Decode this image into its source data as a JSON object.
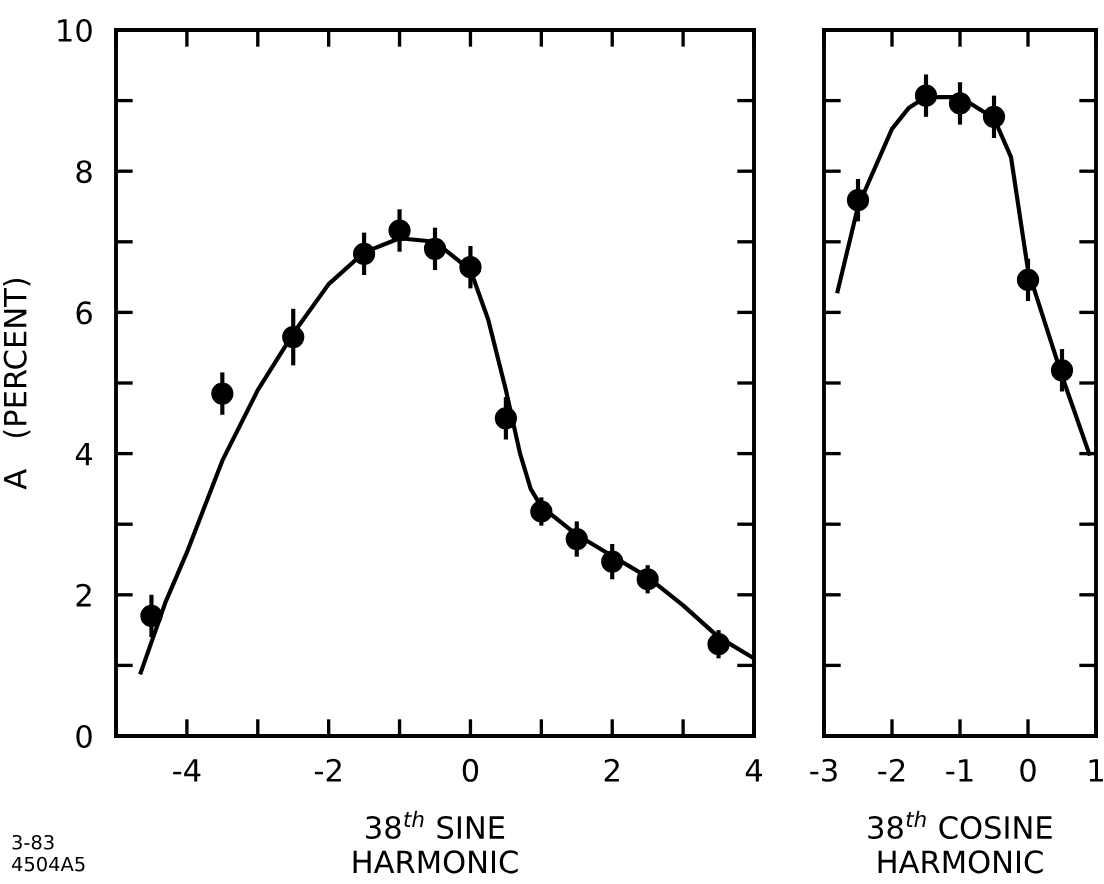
{
  "chart_data": [
    {
      "type": "scatter",
      "xlabel": "38$^{th}$ SINE\nHARMONIC",
      "ylabel": "A   (PERCENT)",
      "annotations": [
        "3-83\n4504A5"
      ],
      "xlim": [
        -5,
        4
      ],
      "ylim": [
        0,
        10
      ],
      "xticks": [
        {
          "value": -5,
          "label": null
        },
        -4,
        {
          "value": -3,
          "label": null
        },
        -2,
        {
          "value": -1,
          "label": null
        },
        0,
        {
          "value": 1,
          "label": null
        },
        2,
        {
          "value": 3,
          "label": null
        },
        4
      ],
      "yticks": [
        0,
        {
          "value": 1,
          "label": null
        },
        2,
        {
          "value": 3,
          "label": null
        },
        4,
        {
          "value": 5,
          "label": null
        },
        6,
        {
          "value": 7,
          "label": null
        },
        8,
        {
          "value": 9,
          "label": null
        },
        10
      ],
      "grid": false,
      "series": [
        {
          "marker": "circle",
          "color": "#000000",
          "x": [
            -4.5,
            -3.5,
            -2.5,
            -1.5,
            -1,
            -0.5,
            0,
            0.5,
            1,
            1.5,
            2,
            2.5,
            3.5
          ],
          "values": [
            1.7,
            4.85,
            5.65,
            6.83,
            7.16,
            6.9,
            6.64,
            4.5,
            3.18,
            2.79,
            2.47,
            2.22,
            1.3
          ],
          "errors": [
            0.3,
            0.3,
            0.4,
            0.3,
            0.3,
            0.3,
            0.3,
            0.3,
            0.2,
            0.25,
            0.25,
            0.2,
            0.2
          ]
        },
        {
          "type": "line",
          "marker": "none",
          "color": "#000000",
          "x": [
            -4.65,
            -4.3,
            -4,
            -3.5,
            -3,
            -2.5,
            -2,
            -1.5,
            -1,
            -0.5,
            0,
            0.25,
            0.5,
            0.7,
            0.85,
            1,
            1.5,
            2,
            2.5,
            3,
            3.5,
            4
          ],
          "values": [
            0.9,
            1.9,
            2.6,
            3.9,
            4.9,
            5.7,
            6.4,
            6.85,
            7.05,
            7.0,
            6.6,
            5.9,
            4.9,
            4.0,
            3.5,
            3.25,
            2.85,
            2.55,
            2.25,
            1.85,
            1.4,
            1.1
          ]
        }
      ]
    },
    {
      "type": "scatter",
      "xlabel": "38$^{th}$ COSINE\nHARMONIC",
      "xlim": [
        -3,
        1
      ],
      "ylim": [
        0,
        10
      ],
      "xticks": [
        -3,
        -2,
        -1,
        0,
        1
      ],
      "yticks": [
        {
          "value": 0,
          "label": null
        },
        {
          "value": 1,
          "label": null
        },
        {
          "value": 2,
          "label": null
        },
        {
          "value": 3,
          "label": null
        },
        {
          "value": 4,
          "label": null
        },
        {
          "value": 5,
          "label": null
        },
        {
          "value": 6,
          "label": null
        },
        {
          "value": 7,
          "label": null
        },
        {
          "value": 8,
          "label": null
        },
        {
          "value": 9,
          "label": null
        },
        {
          "value": 10,
          "label": null
        }
      ],
      "tick_labels": "x",
      "grid": false,
      "series": [
        {
          "marker": "circle",
          "color": "#000000",
          "x": [
            -2.5,
            -1.5,
            -1,
            -0.5,
            0,
            0.5
          ],
          "values": [
            7.59,
            9.07,
            8.96,
            8.77,
            6.46,
            5.18
          ],
          "errors": [
            0.3,
            0.3,
            0.3,
            0.3,
            0.3,
            0.3
          ]
        },
        {
          "type": "line",
          "marker": "none",
          "color": "#000000",
          "x": [
            -2.8,
            -2.5,
            -2,
            -1.75,
            -1.5,
            -1,
            -0.5,
            -0.25,
            0,
            0.5,
            0.9
          ],
          "values": [
            6.3,
            7.5,
            8.6,
            8.9,
            9.05,
            9.05,
            8.75,
            8.2,
            6.6,
            5.1,
            4.0
          ]
        }
      ]
    }
  ]
}
